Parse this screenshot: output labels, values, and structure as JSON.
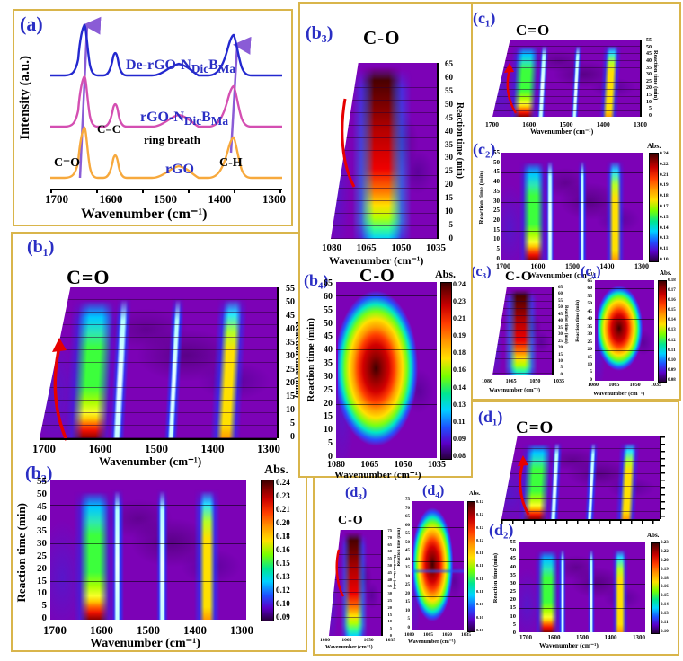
{
  "figure": {
    "background": "#ffffff",
    "box_border_color": "#d9b54b",
    "panel_label_color": "#2a2ec4",
    "map_base_color": "#7c02b6"
  },
  "axes": {
    "xlabel": "Wavenumber (cm⁻¹)",
    "ylabel_time": "Reaction time (min)",
    "abs_label": "Abs.",
    "wide_ticks": [
      "1700",
      "1600",
      "1500",
      "1400",
      "1300"
    ],
    "narrow_ticks": [
      "1080",
      "1065",
      "1050",
      "1035"
    ],
    "time55": [
      "0",
      "5",
      "10",
      "15",
      "20",
      "25",
      "30",
      "35",
      "40",
      "45",
      "50",
      "55"
    ],
    "time65": [
      "0",
      "5",
      "10",
      "15",
      "20",
      "25",
      "30",
      "35",
      "40",
      "45",
      "50",
      "55",
      "60",
      "65"
    ],
    "time75": [
      "0",
      "5",
      "10",
      "15",
      "20",
      "25",
      "30",
      "35",
      "40",
      "45",
      "50",
      "55",
      "60",
      "65",
      "70",
      "75"
    ]
  },
  "panel_a": {
    "label": "(a)",
    "ylabel": "Intensity (a.u.)",
    "curve1": {
      "prefix": "De-rGO-N",
      "sub1": "Dic",
      "mid": "B",
      "sub2": "Ma"
    },
    "curve2": {
      "prefix": "rGO-N",
      "sub1": "Dic",
      "mid": "B",
      "sub2": "Ma"
    },
    "curve3": "rGO",
    "ann_co": "C=O",
    "ann_cc": "C=C",
    "ann_ring": "ring breath",
    "ann_ch": "C-H"
  },
  "panels": {
    "b1": {
      "label": "(b₁)",
      "title": "C=O"
    },
    "b2": {
      "label": "(b₂)",
      "colorbar": [
        "0.24",
        "0.23",
        "0.21",
        "0.20",
        "0.18",
        "0.16",
        "0.15",
        "0.13",
        "0.12",
        "0.10",
        "0.09"
      ]
    },
    "b3": {
      "label": "(b₃)",
      "title": "C-O"
    },
    "b4": {
      "label": "(b₄)",
      "title": "C-O",
      "colorbar": [
        "0.24",
        "0.23",
        "0.21",
        "0.19",
        "0.18",
        "0.16",
        "0.14",
        "0.13",
        "0.11",
        "0.09",
        "0.08"
      ]
    },
    "c1": {
      "label": "(c₁)",
      "title": "C=O"
    },
    "c2": {
      "label": "(c₂)",
      "colorbar": [
        "0.24",
        "0.22",
        "0.21",
        "0.19",
        "0.18",
        "0.17",
        "0.15",
        "0.14",
        "0.13",
        "0.11",
        "0.10"
      ]
    },
    "c3": {
      "label": "(c₃)",
      "title": "C-O"
    },
    "c4": {
      "label": "(c₄)",
      "colorbar": [
        "0.18",
        "0.17",
        "0.16",
        "0.15",
        "0.14",
        "0.13",
        "0.12",
        "0.11",
        "0.10",
        "0.09",
        "0.08"
      ]
    },
    "d1": {
      "label": "(d₁)",
      "title": "C=O"
    },
    "d2": {
      "label": "(d₂)",
      "colorbar": [
        "0.23",
        "0.22",
        "0.20",
        "0.19",
        "0.18",
        "0.16",
        "0.15",
        "0.14",
        "0.13",
        "0.11",
        "0.10"
      ]
    },
    "d3": {
      "label": "(d₃)",
      "title": "C-O"
    },
    "d4": {
      "label": "(d₄)",
      "colorbar": [
        "0.12",
        "0.12",
        "0.12",
        "0.12",
        "0.11",
        "0.11",
        "0.11",
        "0.11",
        "0.10",
        "0.10",
        "0.10"
      ]
    }
  },
  "chart_data": [
    {
      "panel": "a",
      "type": "line",
      "xlabel": "Wavenumber (cm⁻¹)",
      "ylabel": "Intensity (a.u.)",
      "x_ticks": [
        1700,
        1600,
        1500,
        1400,
        1300
      ],
      "x_axis_reversed": true,
      "series": [
        {
          "name": "De-rGO-NDicBMa",
          "color": "#2328cf",
          "peaks_cm1": [
            1676,
            1624,
            1478,
            1392
          ]
        },
        {
          "name": "rGO-NDicBMa",
          "color": "#d44fb2",
          "peaks_cm1": [
            1678,
            1624,
            1478,
            1392
          ]
        },
        {
          "name": "rGO",
          "color": "#f7a93d",
          "peaks_cm1": [
            1682,
            1622,
            1472,
            1392
          ]
        }
      ],
      "peak_labels": [
        "C=O",
        "C=C",
        "ring breath",
        "C-H"
      ],
      "annotation_arrows": [
        "up-arrow at C=O peak",
        "up-arrow at C-H peak"
      ]
    },
    {
      "panel": "b1",
      "type": "surface3d",
      "title": "C=O",
      "xlabel": "Wavenumber (cm⁻¹)",
      "x_ticks": [
        1700,
        1600,
        1500,
        1400,
        1300
      ],
      "ylabel": "Reaction time (min)",
      "y_range": [
        0,
        55
      ],
      "y_step": 5,
      "band_centers_cm1": [
        1665,
        1624,
        1478,
        1392
      ],
      "colormap": "rainbow-on-purple",
      "annotation": "red arrow marks growing C=O ridge"
    },
    {
      "panel": "b2",
      "type": "heatmap",
      "xlabel": "Wavenumber (cm⁻¹)",
      "x_ticks": [
        1700,
        1600,
        1500,
        1400,
        1300
      ],
      "ylabel": "Reaction time (min)",
      "y_range": [
        0,
        55
      ],
      "y_step": 5,
      "colorbar_label": "Abs.",
      "colorbar_ticks": [
        0.24,
        0.23,
        0.21,
        0.2,
        0.18,
        0.16,
        0.15,
        0.13,
        0.12,
        0.1,
        0.09
      ],
      "band_centers_cm1": [
        1665,
        1624,
        1478,
        1392
      ],
      "gridlines_min": [
        15,
        30,
        45
      ]
    },
    {
      "panel": "b3",
      "type": "surface3d",
      "title": "C-O",
      "xlabel": "Wavenumber (cm⁻¹)",
      "x_ticks": [
        1080,
        1065,
        1050,
        1035
      ],
      "ylabel": "Reaction time (min)",
      "y_range": [
        0,
        65
      ],
      "y_step": 5,
      "band_centers_cm1": [
        1062
      ],
      "annotation": "red projection curve at left"
    },
    {
      "panel": "b4",
      "type": "heatmap",
      "title": "C-O",
      "xlabel": "Wavenumber (cm⁻¹)",
      "x_ticks": [
        1080,
        1065,
        1050,
        1035
      ],
      "ylabel": "Reaction time (min)",
      "y_range": [
        0,
        65
      ],
      "y_step": 5,
      "colorbar_label": "Abs.",
      "colorbar_ticks": [
        0.24,
        0.23,
        0.21,
        0.19,
        0.18,
        0.16,
        0.14,
        0.13,
        0.11,
        0.09,
        0.08
      ],
      "band_centers_cm1": [
        1062
      ],
      "gridlines_min": [
        20,
        40,
        60
      ]
    },
    {
      "panel": "c1",
      "type": "surface3d",
      "title": "C=O",
      "xlabel": "Wavenumber (cm⁻¹)",
      "x_ticks": [
        1700,
        1600,
        1500,
        1400,
        1300
      ],
      "ylabel": "Reaction time (min)",
      "y_range": [
        0,
        55
      ],
      "y_step": 5,
      "band_centers_cm1": [
        1665,
        1624,
        1478,
        1392
      ],
      "annotation": "red arrow"
    },
    {
      "panel": "c2",
      "type": "heatmap",
      "xlabel": "Wavenumber (cm⁻¹)",
      "x_ticks": [
        1700,
        1600,
        1500,
        1400,
        1300
      ],
      "ylabel": "Reaction time (min)",
      "y_range": [
        0,
        55
      ],
      "y_step": 5,
      "colorbar_label": "Abs.",
      "colorbar_ticks": [
        0.24,
        0.22,
        0.21,
        0.19,
        0.18,
        0.17,
        0.15,
        0.14,
        0.13,
        0.11,
        0.1
      ],
      "band_centers_cm1": [
        1665,
        1624,
        1478,
        1392
      ],
      "gridlines_min": [
        15,
        30,
        45
      ]
    },
    {
      "panel": "c3",
      "type": "surface3d",
      "title": "C-O",
      "xlabel": "Wavenumber (cm⁻¹)",
      "x_ticks": [
        1080,
        1065,
        1050,
        1035
      ],
      "ylabel": "Reaction time (min)",
      "y_range": [
        0,
        65
      ],
      "y_step": 5,
      "band_centers_cm1": [
        1062
      ]
    },
    {
      "panel": "c4",
      "type": "heatmap",
      "xlabel": "Wavenumber (cm⁻¹)",
      "x_ticks": [
        1080,
        1065,
        1050,
        1035
      ],
      "ylabel": "Reaction time (min)",
      "y_range": [
        0,
        65
      ],
      "y_step": 5,
      "colorbar_label": "Abs.",
      "colorbar_ticks": [
        0.18,
        0.17,
        0.16,
        0.15,
        0.14,
        0.13,
        0.12,
        0.11,
        0.1,
        0.09,
        0.08
      ],
      "band_centers_cm1": [
        1062
      ],
      "gridlines_min": [
        20,
        40,
        60
      ]
    },
    {
      "panel": "d1",
      "type": "surface3d",
      "title": "C=O",
      "xlabel": "Wavenumber (cm⁻¹)",
      "x_ticks": [
        1700,
        1600,
        1500,
        1400,
        1300
      ],
      "ylabel": "Reaction time (min)",
      "y_range": [
        0,
        55
      ],
      "y_step": 5,
      "band_centers_cm1": [
        1665,
        1624,
        1478,
        1392
      ],
      "annotation": "red arrow"
    },
    {
      "panel": "d2",
      "type": "heatmap",
      "xlabel": "Wavenumber (cm⁻¹)",
      "x_ticks": [
        1700,
        1600,
        1500,
        1400,
        1300
      ],
      "ylabel": "Reaction time (min)",
      "y_range": [
        0,
        55
      ],
      "y_step": 5,
      "colorbar_label": "Abs.",
      "colorbar_ticks": [
        0.23,
        0.22,
        0.2,
        0.19,
        0.18,
        0.16,
        0.15,
        0.14,
        0.13,
        0.11,
        0.1
      ],
      "band_centers_cm1": [
        1665,
        1624,
        1478,
        1392
      ],
      "gridlines_min": [
        15,
        30,
        45
      ]
    },
    {
      "panel": "d3",
      "type": "surface3d",
      "title": "C-O",
      "xlabel": "Wavenumber (cm⁻¹)",
      "x_ticks": [
        1080,
        1065,
        1050,
        1035
      ],
      "ylabel": "Reaction time (min)",
      "y_range": [
        0,
        75
      ],
      "y_step": 5,
      "band_centers_cm1": [
        1062
      ]
    },
    {
      "panel": "d4",
      "type": "heatmap",
      "xlabel": "Wavenumber (cm⁻¹)",
      "x_ticks": [
        1080,
        1065,
        1050,
        1035
      ],
      "ylabel": "Reaction time (min)",
      "y_range": [
        0,
        75
      ],
      "y_step": 5,
      "colorbar_label": "Abs.",
      "colorbar_ticks": [
        "0.12",
        "0.12",
        "0.12",
        "0.12",
        "0.11",
        "0.11",
        "0.11",
        "0.11",
        "0.10",
        "0.10",
        "0.10"
      ],
      "band_centers_cm1": [
        1062
      ],
      "gridlines_min": [
        20,
        40,
        60
      ],
      "feature": "blue horizontal streak near 35 min"
    }
  ]
}
